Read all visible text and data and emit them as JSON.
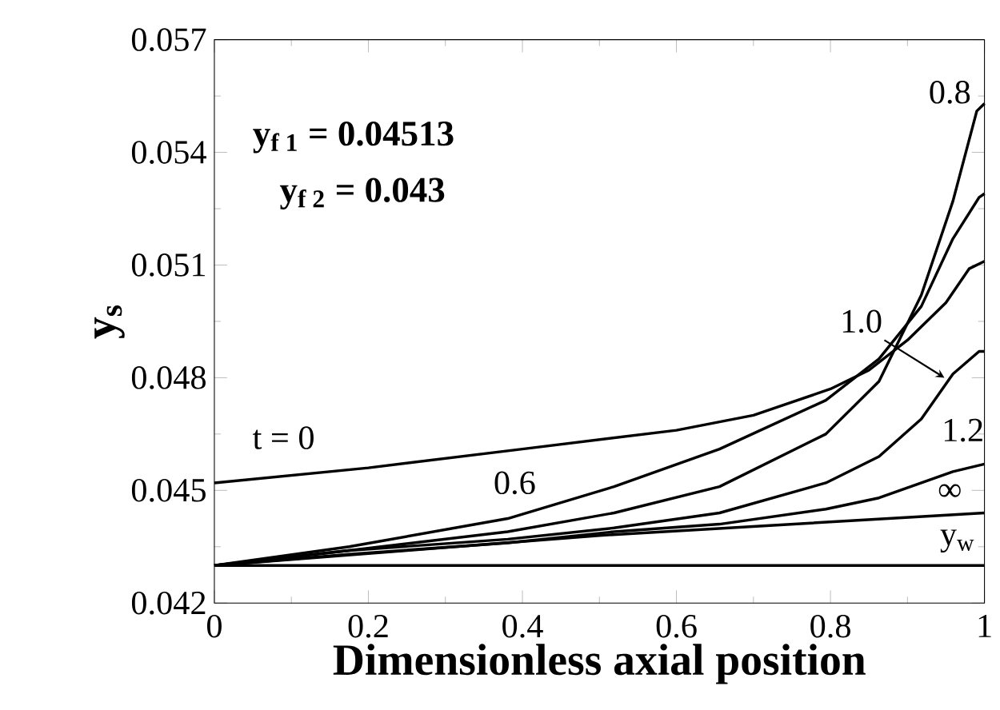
{
  "chart_data": {
    "type": "line",
    "xlabel": "Dimensionless axial position",
    "ylabel": "y$_{s}$",
    "annotations": [
      "y$_{f 1}$ = 0.04513",
      "y$_{f 2}$ = 0.043"
    ],
    "xlim": [
      0,
      1
    ],
    "ylim": [
      0.042,
      0.057
    ],
    "xticks": [
      0,
      0.2,
      0.4,
      0.6,
      0.8,
      1
    ],
    "yticks": [
      0.042,
      0.045,
      0.048,
      0.051,
      0.054,
      0.057
    ],
    "grid": false,
    "marker": "none",
    "line_style": "solid",
    "series": [
      {
        "name": "t = 0",
        "color": "#000000",
        "x": [
          0,
          0.2,
          0.4,
          0.6,
          0.7,
          0.8,
          0.85,
          0.9,
          0.95,
          0.98,
          1
        ],
        "values": [
          0.0452,
          0.0456,
          0.0461,
          0.0466,
          0.047,
          0.0477,
          0.0482,
          0.049,
          0.05,
          0.0509,
          0.0511
        ]
      },
      {
        "name": "0.6",
        "color": "#000000",
        "x": [
          0,
          0.175,
          0.381,
          0.519,
          0.656,
          0.794,
          0.863,
          0.918,
          0.959,
          0.993,
          1
        ],
        "values": [
          0.043,
          0.0435,
          0.04425,
          0.0451,
          0.0461,
          0.0474,
          0.0485,
          0.0499,
          0.0517,
          0.0528,
          0.0529
        ]
      },
      {
        "name": "0.8",
        "color": "#000000",
        "x": [
          0,
          0.175,
          0.381,
          0.519,
          0.656,
          0.794,
          0.863,
          0.918,
          0.959,
          0.99,
          1
        ],
        "values": [
          0.043,
          0.0434,
          0.0439,
          0.0444,
          0.0451,
          0.0465,
          0.0479,
          0.0502,
          0.0527,
          0.0551,
          0.0553
        ]
      },
      {
        "name": "1.0",
        "color": "#000000",
        "x": [
          0,
          0.175,
          0.381,
          0.519,
          0.656,
          0.794,
          0.863,
          0.918,
          0.959,
          0.993,
          1
        ],
        "values": [
          0.043,
          0.0434,
          0.0437,
          0.044,
          0.0444,
          0.0452,
          0.0459,
          0.0469,
          0.0481,
          0.0487,
          0.0487
        ]
      },
      {
        "name": "1.2",
        "color": "#000000",
        "x": [
          0,
          0.175,
          0.381,
          0.519,
          0.656,
          0.794,
          0.863,
          0.918,
          0.959,
          1
        ],
        "values": [
          0.043,
          0.0433,
          0.0436,
          0.0439,
          0.0441,
          0.0445,
          0.0448,
          0.0452,
          0.0455,
          0.0457
        ]
      },
      {
        "name": "∞",
        "color": "#000000",
        "x": [
          0,
          0.25,
          0.5,
          0.75,
          1
        ],
        "values": [
          0.043,
          0.0434,
          0.0438,
          0.0441,
          0.0444
        ]
      },
      {
        "name": "y$_{w}$",
        "color": "#000000",
        "x": [
          0,
          1
        ],
        "values": [
          0.043,
          0.043
        ]
      }
    ]
  }
}
